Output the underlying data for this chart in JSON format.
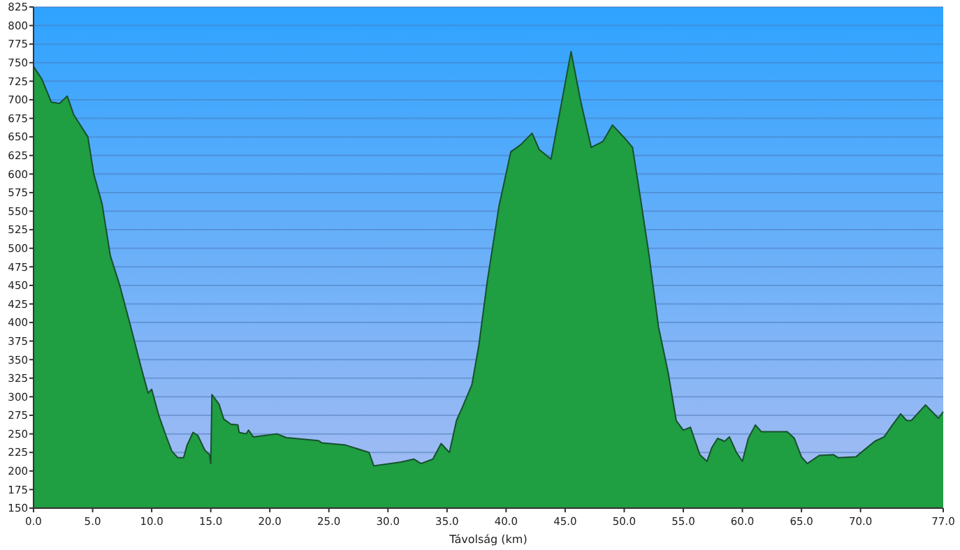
{
  "chart_data": {
    "type": "area",
    "xlabel": "Távolság (km)",
    "x": [
      0,
      0.7,
      1.5,
      2.2,
      2.85,
      3.4,
      4.0,
      4.6,
      5.1,
      5.8,
      6.5,
      7.3,
      8.3,
      9.1,
      9.7,
      10.0,
      10.6,
      11.2,
      11.7,
      12.2,
      12.7,
      13.0,
      13.5,
      13.9,
      14.5,
      14.9,
      15.0,
      15.1,
      15.7,
      16.1,
      16.7,
      17.3,
      17.4,
      18.0,
      18.2,
      18.6,
      20.6,
      21.4,
      24.1,
      24.4,
      26.4,
      28.4,
      28.8,
      31.1,
      32.2,
      32.8,
      33.8,
      34.5,
      35.2,
      35.8,
      36.3,
      37.1,
      37.7,
      38.4,
      39.4,
      40.4,
      41.2,
      42.2,
      42.8,
      43.8,
      45.5,
      46.3,
      47.2,
      48.2,
      49.0,
      50.0,
      50.7,
      51.3,
      52.1,
      52.9,
      53.7,
      54.4,
      55.0,
      55.6,
      56.4,
      57.0,
      57.4,
      57.9,
      58.5,
      58.9,
      59.5,
      60.0,
      60.5,
      61.1,
      61.6,
      63.8,
      64.4,
      65.0,
      65.5,
      66.5,
      67.7,
      68.1,
      69.6,
      71.2,
      72.0,
      72.7,
      73.4,
      73.9,
      74.3,
      75.5,
      76.6,
      77.0
    ],
    "series": [
      {
        "color": "#1f9e42",
        "values": [
          745,
          728,
          697,
          695,
          705,
          680,
          665,
          650,
          600,
          560,
          490,
          450,
          390,
          340,
          305,
          310,
          275,
          248,
          227,
          218,
          218,
          235,
          252,
          248,
          228,
          222,
          210,
          303,
          290,
          270,
          263,
          262,
          252,
          250,
          255,
          246,
          250,
          245,
          241,
          238,
          235,
          225,
          207,
          212,
          216,
          210,
          216,
          237,
          225,
          268,
          286,
          316,
          370,
          455,
          557,
          630,
          639,
          655,
          633,
          620,
          765,
          699,
          636,
          644,
          666,
          649,
          636,
          575,
          491,
          394,
          334,
          268,
          255,
          259,
          222,
          213,
          231,
          244,
          240,
          246,
          225,
          213,
          244,
          262,
          253,
          253,
          244,
          219,
          210,
          221,
          222,
          218,
          219,
          240,
          246,
          262,
          277,
          268,
          268,
          289,
          271,
          280
        ]
      }
    ],
    "xlim": [
      0,
      77
    ],
    "xticks": [
      {
        "value": 0,
        "label": "0.0"
      },
      {
        "value": 5,
        "label": "5.0"
      },
      {
        "value": 10,
        "label": "10.0"
      },
      {
        "value": 15,
        "label": "15.0"
      },
      {
        "value": 20,
        "label": "20.0"
      },
      {
        "value": 25,
        "label": "25.0"
      },
      {
        "value": 30,
        "label": "30.0"
      },
      {
        "value": 35,
        "label": "35.0"
      },
      {
        "value": 40,
        "label": "40.0"
      },
      {
        "value": 45,
        "label": "45.0"
      },
      {
        "value": 50,
        "label": "50.0"
      },
      {
        "value": 55,
        "label": "55.0"
      },
      {
        "value": 60,
        "label": "60.0"
      },
      {
        "value": 65,
        "label": "65.0"
      },
      {
        "value": 70,
        "label": "70.0"
      },
      {
        "value": 77,
        "label": "77.0"
      }
    ],
    "ylim": [
      150,
      825
    ],
    "yticks": [
      150,
      175,
      200,
      225,
      250,
      275,
      300,
      325,
      350,
      375,
      400,
      425,
      450,
      475,
      500,
      525,
      550,
      575,
      600,
      625,
      650,
      675,
      700,
      725,
      750,
      775,
      800,
      825
    ],
    "grid": "y"
  }
}
